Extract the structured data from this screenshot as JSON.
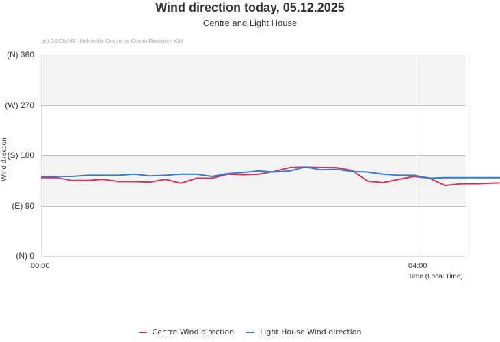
{
  "header": {
    "title": "Wind direction today, 05.12.2025",
    "subtitle": "Centre and Light House",
    "credit": "(c) GEOMAR - Helmholtz Centre for Ocean Research Kiel"
  },
  "legend": {
    "centre_label": "Centre Wind direction",
    "lighthouse_label": "Light House Wind direction",
    "centre_color": "#d1345b",
    "lighthouse_color": "#2f7ed8"
  },
  "axes": {
    "y_title": "Wind direction °",
    "x_title": "Time (Local Time)",
    "y_ticks": [
      "(N) 0",
      "(E) 90",
      "(S) 180",
      "(W) 270",
      "(N) 360"
    ],
    "x_ticks": [
      "00:00",
      "04:00"
    ]
  },
  "chart_data": {
    "type": "line",
    "title": "Wind direction today, 05.12.2025",
    "subtitle": "Centre and Light House",
    "xlabel": "Time (Local Time)",
    "ylabel": "Wind direction °",
    "ylim": [
      0,
      360
    ],
    "yticks": [
      0,
      90,
      180,
      270,
      360
    ],
    "ytick_labels": [
      "(N) 0",
      "(E) 90",
      "(S) 180",
      "(W) 270",
      "(N) 360"
    ],
    "xticks": [
      "00:00",
      "04:00"
    ],
    "x_minutes": [
      0,
      10,
      20,
      30,
      40,
      50,
      60,
      70,
      80,
      90,
      100,
      110,
      120,
      130,
      140,
      150,
      160,
      170,
      180,
      190,
      200,
      210,
      220,
      230,
      240,
      250,
      260,
      270,
      280,
      290,
      300,
      310,
      320
    ],
    "grid": true,
    "legend_position": "bottom",
    "series": [
      {
        "name": "Centre Wind direction",
        "color": "#d1345b",
        "values": [
          140,
          140,
          135,
          135,
          137,
          133,
          133,
          132,
          137,
          130,
          139,
          139,
          146,
          145,
          146,
          151,
          158,
          159,
          158,
          158,
          153,
          134,
          131,
          137,
          142,
          139,
          126,
          129,
          129,
          130,
          131,
          125,
          134
        ]
      },
      {
        "name": "Light House Wind direction",
        "color": "#2f7ed8",
        "values": [
          142,
          142,
          142,
          144,
          144,
          144,
          146,
          143,
          144,
          146,
          146,
          142,
          147,
          149,
          152,
          150,
          152,
          159,
          154,
          155,
          151,
          150,
          146,
          144,
          144,
          139,
          140,
          140,
          140,
          140,
          140,
          140,
          140
        ]
      }
    ]
  }
}
